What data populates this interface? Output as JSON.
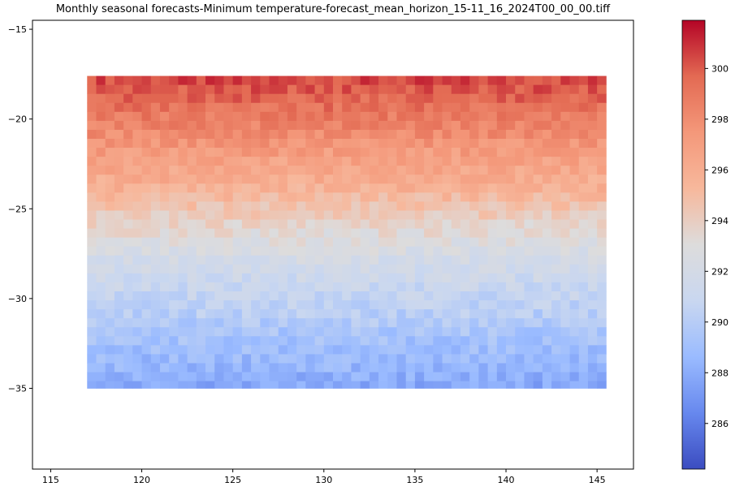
{
  "chart_data": {
    "type": "heatmap",
    "title": "Monthly seasonal forecasts-Minimum temperature-forecast_mean_horizon_15-11_16_2024T00_00_00.tiff",
    "xlabel": "",
    "ylabel": "",
    "xlim": [
      114,
      147
    ],
    "ylim": [
      -39.5,
      -14.5
    ],
    "x_ticks": [
      115,
      120,
      125,
      130,
      135,
      140,
      145
    ],
    "y_ticks": [
      -15,
      -20,
      -25,
      -30,
      -35
    ],
    "data_extent": {
      "lon": [
        117,
        145.5
      ],
      "lat": [
        -35,
        -17.6
      ]
    },
    "colormap": "coolwarm",
    "colorbar": {
      "range": [
        284.2,
        301.9
      ],
      "ticks": [
        286,
        288,
        290,
        292,
        294,
        296,
        298,
        300
      ],
      "colors": [
        "#3b4cc0",
        "#6788ee",
        "#9abbff",
        "#c9d7f0",
        "#dddcdc",
        "#f7b89c",
        "#f4987a",
        "#e36a53",
        "#b40426"
      ]
    },
    "grid": false,
    "approx_field_by_lat": [
      {
        "lat": -17.6,
        "value": 300.6
      },
      {
        "lat": -20,
        "value": 298.8
      },
      {
        "lat": -22,
        "value": 297.0
      },
      {
        "lat": -24,
        "value": 295.6
      },
      {
        "lat": -26,
        "value": 293.5
      },
      {
        "lat": -28,
        "value": 291.8
      },
      {
        "lat": -30,
        "value": 290.6
      },
      {
        "lat": -32,
        "value": 289.3
      },
      {
        "lat": -34,
        "value": 288.4
      },
      {
        "lat": -35,
        "value": 287.6
      }
    ]
  }
}
